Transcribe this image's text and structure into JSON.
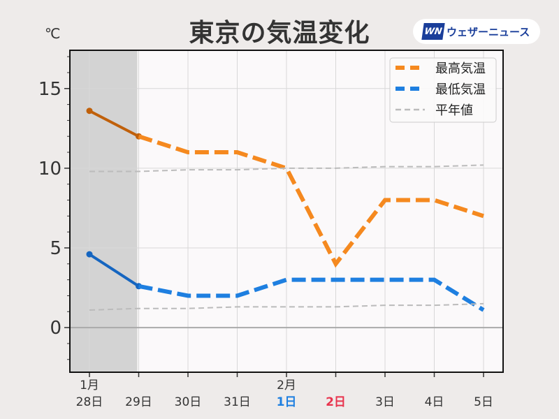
{
  "header": {
    "title": "東京の気温変化",
    "logo_mark": "WN",
    "logo_text": "ウェザーニュース"
  },
  "chart_data": {
    "type": "line",
    "title": "東京の気温変化",
    "ylabel": "℃",
    "ylim": [
      -2.8,
      17.4
    ],
    "yticks": [
      0,
      5,
      10,
      15
    ],
    "grid": true,
    "legend_position": "top-right",
    "observed_until_index": 1,
    "categories": [
      [
        "1月",
        "28日"
      ],
      [
        "",
        "29日"
      ],
      [
        "",
        "30日"
      ],
      [
        "",
        "31日"
      ],
      [
        "2月",
        "1日"
      ],
      [
        "",
        "2日"
      ],
      [
        "",
        "3日"
      ],
      [
        "",
        "4日"
      ],
      [
        "",
        "5日"
      ]
    ],
    "category_colors": [
      "#333333",
      "#333333",
      "#333333",
      "#333333",
      "#1e7fe0",
      "#e8344e",
      "#333333",
      "#333333",
      "#333333"
    ],
    "series": [
      {
        "name": "最高気温",
        "values": [
          13.6,
          12.0,
          11,
          11,
          10,
          4,
          8,
          8,
          7
        ],
        "color": "#f5891f",
        "observed_color": "#c0600a"
      },
      {
        "name": "最低気温",
        "values": [
          4.6,
          2.6,
          2,
          2,
          3,
          3,
          3,
          3,
          1.1
        ],
        "color": "#1e7fe0",
        "observed_color": "#1565c0"
      },
      {
        "name": "平年値",
        "values": [
          9.8,
          9.8,
          9.9,
          9.9,
          10,
          10,
          10.1,
          10.1,
          10.2
        ],
        "color": "#bbbbbb"
      },
      {
        "name": "平年値",
        "values": [
          1.1,
          1.2,
          1.2,
          1.3,
          1.3,
          1.3,
          1.4,
          1.4,
          1.5
        ],
        "color": "#bbbbbb",
        "legend": false
      }
    ]
  }
}
